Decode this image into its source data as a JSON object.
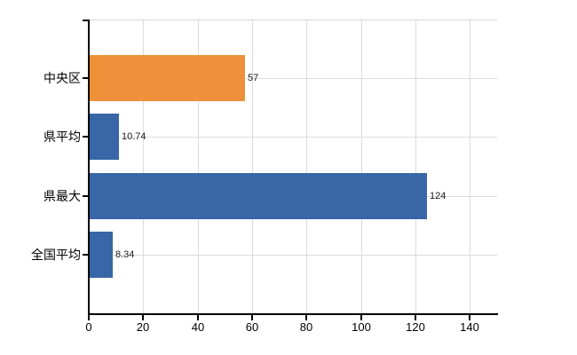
{
  "chart": {
    "background_color": "#FFFFFF",
    "axis_color": "#000000",
    "grid_color": "#DCDCDC",
    "top_border_color": "#D6D6D6",
    "text_color": "#000000",
    "value_label_color": "#1A1A1A"
  },
  "chart_data": {
    "type": "bar",
    "orientation": "horizontal",
    "title": "",
    "xlabel": "",
    "ylabel": "",
    "categories": [
      "中央区",
      "県平均",
      "県最大",
      "全国平均"
    ],
    "values": [
      57,
      10.74,
      124,
      8.34
    ],
    "value_labels": [
      "57",
      "10.74",
      "124",
      "8.34"
    ],
    "bar_colors": [
      "#EE913A",
      "#3866A6",
      "#3866A6",
      "#3866A6"
    ],
    "highlight_color": "#EE913A",
    "default_bar_color": "#3866A6",
    "xlim": [
      0,
      150
    ],
    "x_ticks": [
      0,
      20,
      40,
      60,
      80,
      100,
      120,
      140
    ],
    "x_tick_labels": [
      "0",
      "20",
      "40",
      "60",
      "80",
      "100",
      "120",
      "140"
    ],
    "grid": true,
    "legend": null
  }
}
